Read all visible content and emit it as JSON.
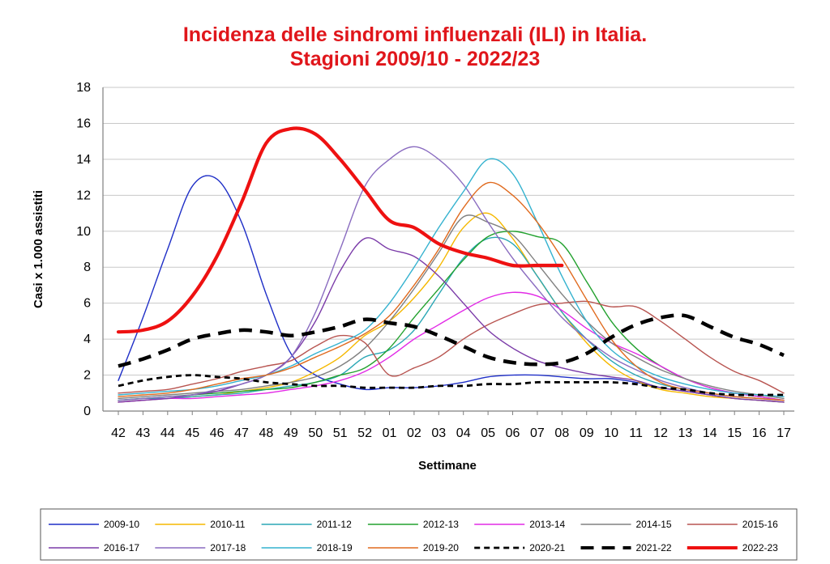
{
  "chart_data": {
    "type": "line",
    "title": "Incidenza delle sindromi influenzali (ILI) in Italia.",
    "subtitle": "Stagioni 2009/10 - 2022/23",
    "xlabel": "Settimane",
    "ylabel": "Casi x 1.000 assistiti",
    "ylim": [
      0,
      18
    ],
    "yticks": [
      "0",
      "2",
      "4",
      "6",
      "8",
      "10",
      "12",
      "14",
      "16",
      "18"
    ],
    "grid": true,
    "legend_position": "bottom",
    "categories": [
      "42",
      "43",
      "44",
      "45",
      "46",
      "47",
      "48",
      "49",
      "50",
      "51",
      "52",
      "01",
      "02",
      "03",
      "04",
      "05",
      "06",
      "07",
      "08",
      "09",
      "10",
      "11",
      "12",
      "13",
      "14",
      "15",
      "16",
      "17"
    ],
    "series": [
      {
        "name": "2009-10",
        "color": "#1f2fc7",
        "dash": "solid",
        "width": 1.4,
        "values": [
          1.7,
          5.2,
          9.0,
          12.5,
          12.9,
          10.5,
          6.5,
          3.2,
          2.0,
          1.5,
          1.2,
          1.3,
          1.3,
          1.4,
          1.6,
          1.9,
          2.0,
          2.0,
          1.9,
          1.8,
          1.8,
          1.6,
          1.3,
          1.1,
          0.9,
          0.7,
          0.6,
          0.5
        ]
      },
      {
        "name": "2010-11",
        "color": "#f5b800",
        "dash": "solid",
        "width": 1.4,
        "values": [
          0.5,
          0.6,
          0.7,
          0.8,
          0.9,
          1.1,
          1.3,
          1.6,
          2.2,
          3.0,
          4.2,
          5.0,
          6.3,
          8.0,
          10.2,
          11.0,
          9.6,
          7.5,
          5.5,
          3.8,
          2.5,
          1.7,
          1.2,
          1.0,
          0.8,
          0.7,
          0.6,
          0.5
        ]
      },
      {
        "name": "2011-12",
        "color": "#2aa7b5",
        "dash": "solid",
        "width": 1.4,
        "values": [
          0.6,
          0.7,
          0.7,
          0.8,
          0.9,
          1.0,
          1.2,
          1.4,
          1.6,
          2.0,
          3.0,
          3.4,
          4.5,
          6.5,
          8.5,
          9.6,
          9.3,
          7.5,
          5.5,
          4.0,
          2.8,
          2.0,
          1.5,
          1.2,
          1.0,
          0.8,
          0.7,
          0.6
        ]
      },
      {
        "name": "2012-13",
        "color": "#22a12e",
        "dash": "solid",
        "width": 1.4,
        "values": [
          0.6,
          0.7,
          0.8,
          0.9,
          1.0,
          1.1,
          1.2,
          1.3,
          1.6,
          2.0,
          2.4,
          3.5,
          5.2,
          6.8,
          8.4,
          9.7,
          10.0,
          9.7,
          9.3,
          7.2,
          5.0,
          3.5,
          2.5,
          1.8,
          1.3,
          1.0,
          0.8,
          0.6
        ]
      },
      {
        "name": "2013-14",
        "color": "#e22ae6",
        "dash": "solid",
        "width": 1.4,
        "values": [
          0.5,
          0.6,
          0.7,
          0.7,
          0.8,
          0.9,
          1.0,
          1.2,
          1.4,
          1.7,
          2.2,
          3.0,
          4.0,
          4.8,
          5.6,
          6.3,
          6.6,
          6.4,
          5.6,
          4.6,
          3.8,
          3.2,
          2.5,
          1.8,
          1.3,
          1.0,
          0.8,
          0.6
        ]
      },
      {
        "name": "2014-15",
        "color": "#808080",
        "dash": "solid",
        "width": 1.4,
        "values": [
          0.7,
          0.8,
          0.9,
          1.0,
          1.1,
          1.2,
          1.4,
          1.6,
          1.9,
          2.5,
          3.5,
          5.0,
          6.8,
          8.8,
          10.8,
          10.5,
          9.8,
          8.2,
          6.5,
          5.0,
          3.8,
          3.0,
          2.3,
          1.8,
          1.4,
          1.1,
          0.9,
          0.7
        ]
      },
      {
        "name": "2015-16",
        "color": "#b85450",
        "dash": "solid",
        "width": 1.4,
        "values": [
          1.0,
          1.1,
          1.2,
          1.5,
          1.8,
          2.2,
          2.5,
          2.8,
          3.6,
          4.2,
          3.8,
          2.0,
          2.4,
          3.0,
          4.0,
          4.8,
          5.4,
          5.9,
          6.0,
          6.1,
          5.8,
          5.8,
          5.0,
          4.0,
          3.0,
          2.2,
          1.7,
          1.0
        ]
      },
      {
        "name": "2016-17",
        "color": "#7a3aa8",
        "dash": "solid",
        "width": 1.4,
        "values": [
          0.5,
          0.6,
          0.7,
          0.9,
          1.1,
          1.5,
          2.0,
          3.0,
          5.0,
          7.8,
          9.6,
          9.0,
          8.6,
          7.5,
          6.0,
          4.5,
          3.5,
          2.8,
          2.4,
          2.1,
          1.9,
          1.7,
          1.3,
          1.1,
          0.9,
          0.7,
          0.6,
          0.5
        ]
      },
      {
        "name": "2017-18",
        "color": "#8a6cc0",
        "dash": "solid",
        "width": 1.4,
        "values": [
          0.6,
          0.7,
          0.8,
          0.9,
          1.2,
          1.5,
          2.0,
          3.0,
          5.5,
          9.0,
          12.5,
          14.0,
          14.7,
          14.0,
          12.6,
          10.5,
          8.5,
          6.8,
          5.2,
          4.0,
          3.0,
          2.3,
          1.7,
          1.3,
          1.0,
          0.8,
          0.7,
          0.6
        ]
      },
      {
        "name": "2018-19",
        "color": "#34b2cf",
        "dash": "solid",
        "width": 1.4,
        "values": [
          0.9,
          1.0,
          1.1,
          1.2,
          1.4,
          1.7,
          2.0,
          2.5,
          3.2,
          3.8,
          4.5,
          6.0,
          8.0,
          10.2,
          12.2,
          14.0,
          13.2,
          10.5,
          7.5,
          5.0,
          3.4,
          2.5,
          1.9,
          1.5,
          1.2,
          1.0,
          0.9,
          0.8
        ]
      },
      {
        "name": "2019-20",
        "color": "#e06a1e",
        "dash": "solid",
        "width": 1.4,
        "values": [
          0.8,
          0.9,
          1.0,
          1.2,
          1.5,
          1.8,
          2.0,
          2.4,
          3.0,
          3.6,
          4.3,
          5.3,
          7.0,
          9.0,
          11.3,
          12.7,
          12.0,
          10.5,
          8.5,
          6.2,
          4.0,
          2.5,
          1.6,
          1.2,
          1.0,
          0.8,
          0.7,
          0.6
        ]
      },
      {
        "name": "2020-21",
        "color": "#000000",
        "dash": "short",
        "width": 2.8,
        "values": [
          1.4,
          1.7,
          1.9,
          2.0,
          1.9,
          1.8,
          1.6,
          1.5,
          1.4,
          1.4,
          1.3,
          1.3,
          1.3,
          1.4,
          1.4,
          1.5,
          1.5,
          1.6,
          1.6,
          1.6,
          1.6,
          1.5,
          1.3,
          1.2,
          1.0,
          0.9,
          0.9,
          0.9
        ]
      },
      {
        "name": "2021-22",
        "color": "#000000",
        "dash": "long",
        "width": 4.5,
        "values": [
          2.5,
          2.9,
          3.4,
          4.0,
          4.3,
          4.5,
          4.4,
          4.2,
          4.4,
          4.7,
          5.1,
          4.9,
          4.7,
          4.2,
          3.6,
          3.0,
          2.7,
          2.6,
          2.7,
          3.2,
          4.1,
          4.8,
          5.2,
          5.3,
          4.7,
          4.1,
          3.7,
          3.1
        ]
      },
      {
        "name": "2022-23",
        "color": "#ee1111",
        "dash": "solid",
        "width": 4.2,
        "values": [
          4.4,
          4.5,
          5.0,
          6.4,
          8.6,
          11.6,
          14.9,
          15.7,
          15.4,
          14.0,
          12.3,
          10.6,
          10.2,
          9.3,
          8.8,
          8.5,
          8.1,
          8.1,
          8.1,
          null,
          null,
          null,
          null,
          null,
          null,
          null,
          null,
          null
        ]
      }
    ]
  }
}
